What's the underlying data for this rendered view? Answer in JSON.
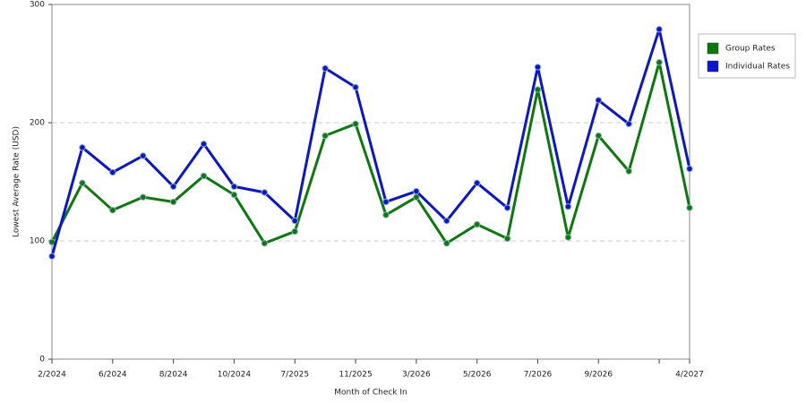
{
  "chart_data": {
    "type": "line",
    "x_label": "Month of Check In",
    "y_label": "Lowest Average Rate (USD)",
    "categories": [
      "2/2024",
      null,
      "6/2024",
      null,
      "8/2024",
      null,
      "10/2024",
      null,
      "7/2025",
      null,
      "11/2025",
      null,
      "3/2026",
      null,
      "5/2026",
      null,
      "7/2026",
      null,
      "9/2026",
      null,
      null,
      "4/2027"
    ],
    "series": [
      {
        "name": "Group Rates",
        "color": "#0a7a0a",
        "values": [
          99,
          149,
          126,
          137,
          133,
          155,
          139,
          98,
          108,
          189,
          199,
          122,
          137,
          98,
          114,
          102,
          228,
          103,
          189,
          159,
          251,
          128
        ]
      },
      {
        "name": "Individual Rates",
        "color": "#0a14d4",
        "values": [
          87,
          179,
          158,
          172,
          146,
          182,
          146,
          141,
          117,
          246,
          230,
          133,
          142,
          117,
          149,
          128,
          247,
          129,
          219,
          199,
          279,
          161
        ]
      }
    ],
    "ylim": [
      0,
      300
    ],
    "yticks": [
      0,
      100,
      200,
      300
    ],
    "grid": true,
    "legend": "right"
  }
}
